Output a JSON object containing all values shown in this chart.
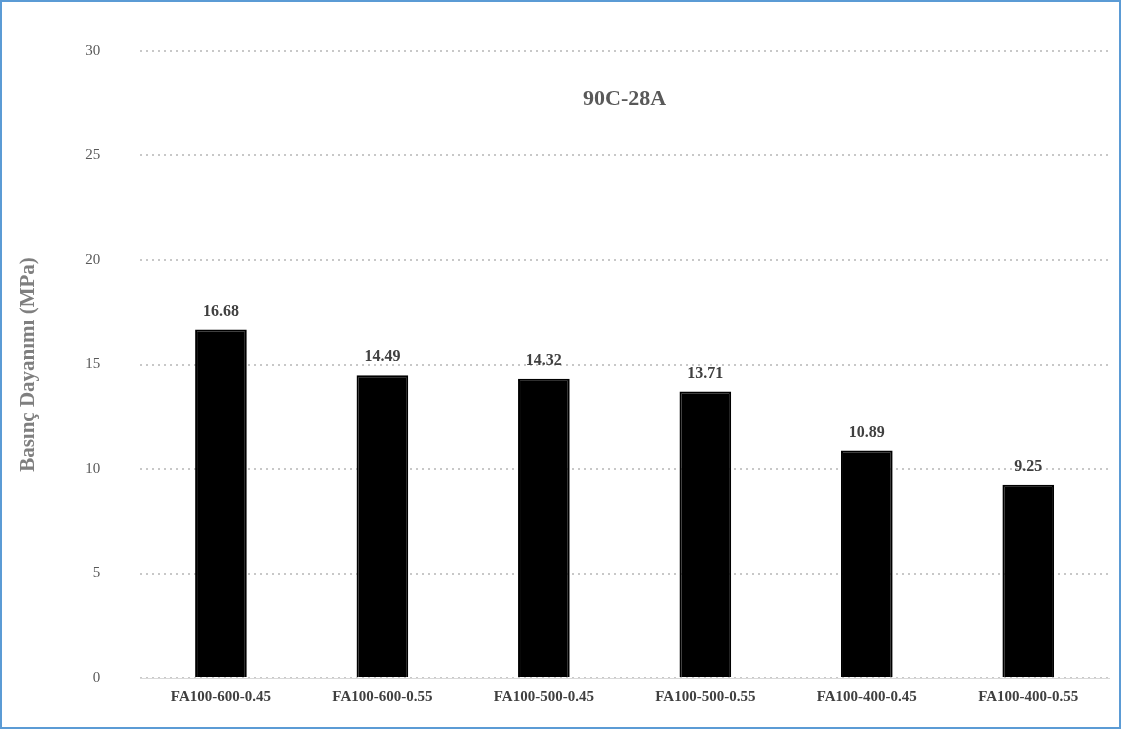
{
  "chart_data": {
    "type": "bar",
    "title": "90C-28A",
    "ylabel": "Basınç Dayanımı (MPa)",
    "categories": [
      "FA100-600-0.45",
      "FA100-600-0.55",
      "FA100-500-0.45",
      "FA100-500-0.55",
      "FA100-400-0.45",
      "FA100-400-0.55"
    ],
    "values": [
      16.68,
      14.49,
      14.32,
      13.71,
      10.89,
      9.25
    ],
    "color": "#000000",
    "ylim": [
      0,
      30
    ],
    "yticks": [
      0,
      5,
      10,
      15,
      20,
      25,
      30
    ],
    "grid": "y",
    "legend": false,
    "data_labels": true
  }
}
